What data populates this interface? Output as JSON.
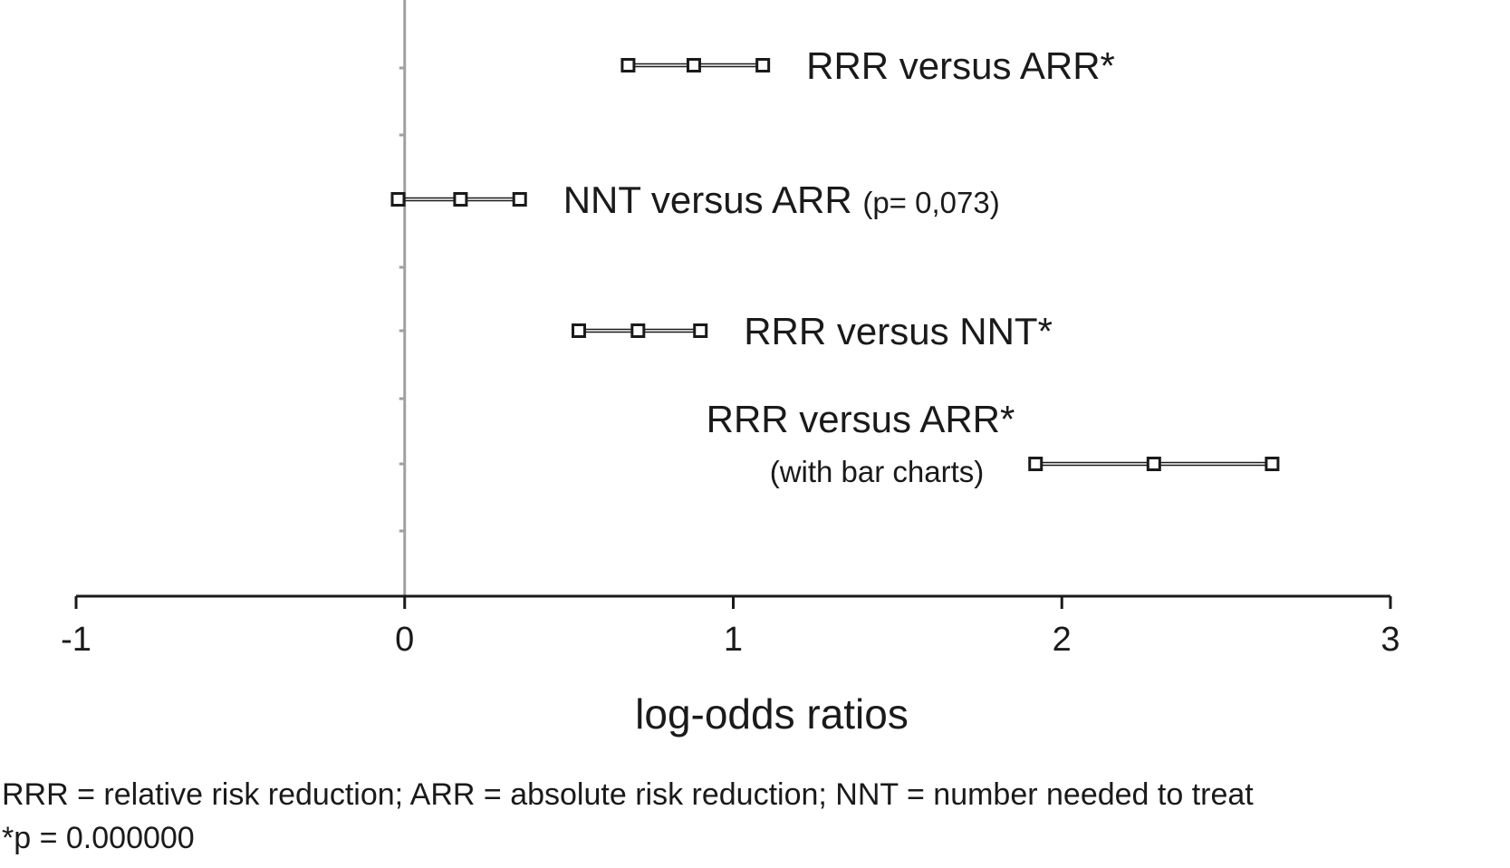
{
  "chart_data": {
    "type": "scatter",
    "subtype": "forest-plot",
    "xlabel": "log-odds ratios",
    "xlim": [
      -1,
      3
    ],
    "xticks": [
      -1,
      0,
      1,
      2,
      3
    ],
    "xtick_labels": [
      "-1",
      "0",
      "1",
      "2",
      "3"
    ],
    "reference_line_x": 0,
    "grid": false,
    "series": [
      {
        "name": "RRR versus ARR*",
        "note": "",
        "lower": 0.68,
        "estimate": 0.88,
        "upper": 1.09
      },
      {
        "name": "NNT versus ARR",
        "note": "(p= 0,073)",
        "lower": -0.02,
        "estimate": 0.17,
        "upper": 0.35
      },
      {
        "name": "RRR versus NNT*",
        "note": "",
        "lower": 0.53,
        "estimate": 0.71,
        "upper": 0.9
      },
      {
        "name": "RRR versus ARR*",
        "note": "(with bar charts)",
        "lower": 1.92,
        "estimate": 2.28,
        "upper": 2.64
      }
    ]
  },
  "footnotes": {
    "abbreviations": "RRR = relative risk reduction; ARR = absolute risk reduction; NNT = number needed to treat",
    "significance": "*p = 0.000000"
  },
  "colors": {
    "axis": "#1a1a1a",
    "reference_line": "#a0a0a0",
    "marker": "#1a1a1a"
  }
}
